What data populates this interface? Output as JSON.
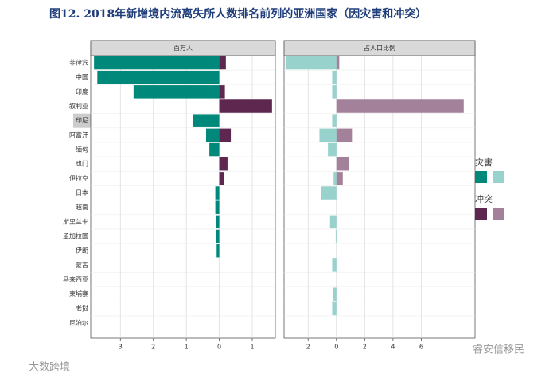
{
  "chart_data": {
    "type": "bar",
    "orientation": "horizontal",
    "title": "图12.  2018年新增境内流离失所人数排名前列的亚洲国家（因灾害和冲突）",
    "categories": [
      "菲律宾",
      "中国",
      "印度",
      "叙利亚",
      "印尼",
      "阿富汗",
      "缅甸",
      "也门",
      "伊拉克",
      "日本",
      "越南",
      "斯里兰卡",
      "孟加拉国",
      "伊朗",
      "蒙古",
      "马来西亚",
      "柬埔寨",
      "老挝",
      "尼泊尔"
    ],
    "legend_groups": [
      "灾害",
      "冲突"
    ],
    "panels": [
      {
        "title": "百万人",
        "xlim": [
          -3.9,
          1.7
        ],
        "xticks": [
          {
            "value": -3,
            "label": "3"
          },
          {
            "value": -2,
            "label": "2"
          },
          {
            "value": -1,
            "label": "1"
          },
          0,
          1
        ],
        "series": [
          {
            "name": "灾害",
            "color": "#00897b",
            "values": [
              -3.8,
              -3.7,
              -2.6,
              0,
              -0.8,
              -0.4,
              -0.3,
              0,
              0,
              -0.12,
              -0.12,
              -0.1,
              -0.1,
              -0.08,
              0,
              0,
              0,
              0,
              0
            ]
          },
          {
            "name": "冲突",
            "color": "#5e2750",
            "values": [
              0.2,
              0,
              0.17,
              1.6,
              0,
              0.35,
              0,
              0.25,
              0.15,
              0,
              0,
              0,
              0,
              0,
              0,
              0,
              0,
              0,
              0
            ]
          }
        ]
      },
      {
        "title": "占人口比例",
        "xlim": [
          -3.7,
          9.8
        ],
        "xticks": [
          {
            "value": -2,
            "label": "2"
          },
          0,
          2,
          4,
          6
        ],
        "series": [
          {
            "name": "灾害",
            "color": "#97d3cc",
            "values": [
              -3.6,
              -0.3,
              -0.3,
              0,
              -0.3,
              -1.2,
              -0.6,
              0,
              -0.2,
              -1.1,
              0,
              -0.45,
              -0.05,
              0,
              -0.3,
              0,
              -0.25,
              -0.3,
              0
            ]
          },
          {
            "name": "冲突",
            "color": "#a4819a",
            "values": [
              0.2,
              0,
              0,
              9.0,
              0,
              1.1,
              0,
              0.9,
              0.45,
              0,
              0,
              0,
              0,
              0,
              0,
              0,
              0,
              0,
              0
            ]
          }
        ]
      }
    ]
  },
  "watermarks": [
    "大数跨境",
    "睿安信移民"
  ]
}
